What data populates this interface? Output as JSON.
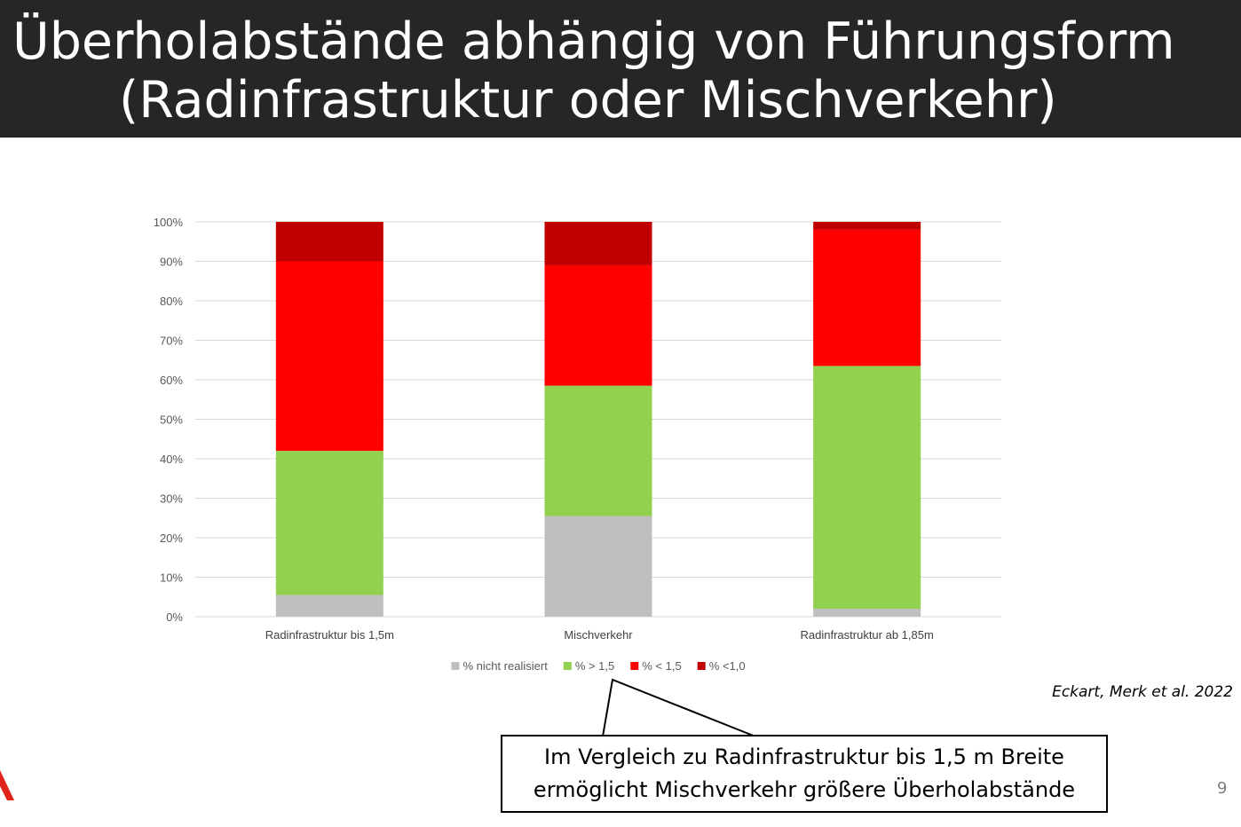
{
  "slide": {
    "title_line_1": "Überholabstände abhängig von Führungsform",
    "title_line_2": "(Radinfrastruktur oder Mischverkehr)",
    "source": "Eckart, Merk et al. 2022",
    "callout_line_1": "Im Vergleich zu Radinfrastruktur bis 1,5 m Breite",
    "callout_line_2": "ermöglicht Mischverkehr größere Überholabstände",
    "page_number": "9",
    "logo_icon": "logo-fragment-icon"
  },
  "chart_data": {
    "type": "bar",
    "stacked": true,
    "categories": [
      "Radinfrastruktur bis 1,5m",
      "Mischverkehr",
      "Radinfrastruktur ab 1,85m"
    ],
    "series": [
      {
        "name": "% nicht realisiert",
        "color": "#bfbfbf",
        "values": [
          5.5,
          25.5,
          2
        ]
      },
      {
        "name": "% > 1,5",
        "color": "#92d050",
        "values": [
          36.5,
          33,
          61.5
        ]
      },
      {
        "name": "% < 1,5",
        "color": "#ff0000",
        "values": [
          48,
          30.5,
          34.5
        ]
      },
      {
        "name": "% <1,0",
        "color": "#c00000",
        "values": [
          10,
          11,
          2
        ]
      }
    ],
    "y_ticks": [
      "0%",
      "10%",
      "20%",
      "30%",
      "40%",
      "50%",
      "60%",
      "70%",
      "80%",
      "90%",
      "100%"
    ],
    "ylim": [
      0,
      100
    ],
    "grid": true,
    "legend_position": "bottom",
    "title": "",
    "xlabel": "",
    "ylabel": ""
  }
}
